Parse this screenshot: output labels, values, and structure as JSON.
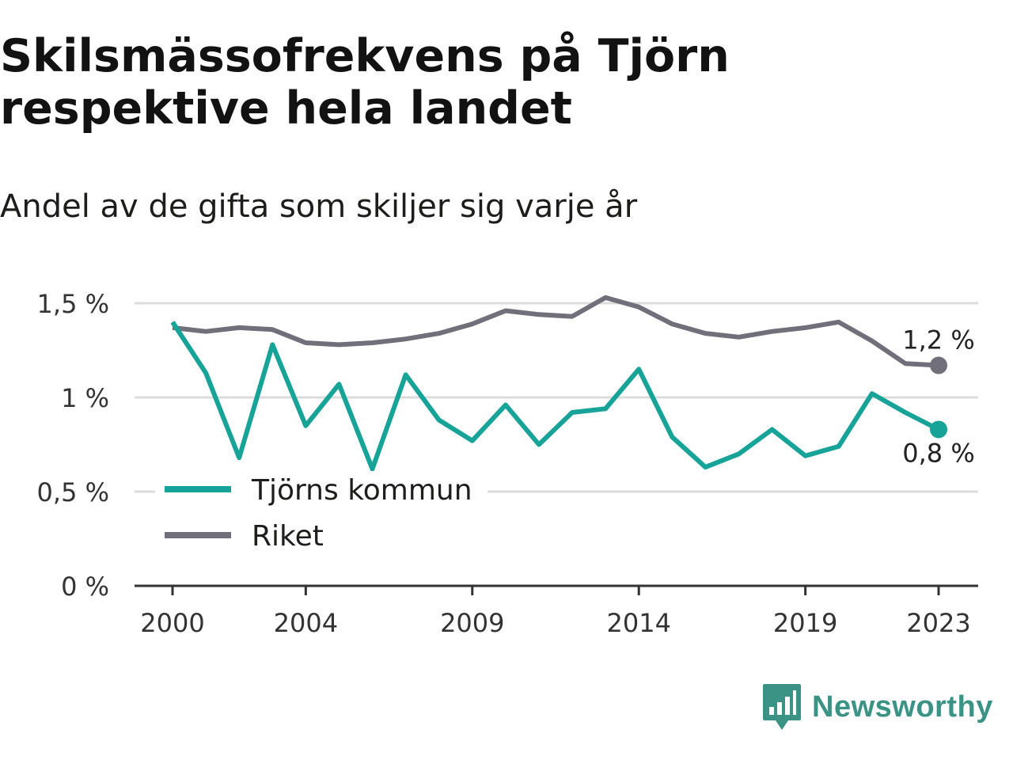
{
  "header": {
    "title": "Skilsmässofrekvens på Tjörn respektive hela landet",
    "subtitle": "Andel av de gifta som skiljer sig varje år"
  },
  "brand": {
    "name": "Newsworthy",
    "logo_icon": "newsworthy-logo-icon",
    "color": "#3a9384"
  },
  "chart_data": {
    "type": "line",
    "x": [
      2000,
      2001,
      2002,
      2003,
      2004,
      2005,
      2006,
      2007,
      2008,
      2009,
      2010,
      2011,
      2012,
      2013,
      2014,
      2015,
      2016,
      2017,
      2018,
      2019,
      2020,
      2021,
      2022,
      2023
    ],
    "x_ticks": [
      2000,
      2004,
      2009,
      2014,
      2019,
      2023
    ],
    "x_tick_labels": [
      "2000",
      "2004",
      "2009",
      "2014",
      "2019",
      "2023"
    ],
    "ylim": [
      0,
      1.5
    ],
    "y_ticks": [
      0,
      0.5,
      1,
      1.5
    ],
    "y_tick_labels": [
      "0 %",
      "0,5 %",
      "1 %",
      "1,5 %"
    ],
    "grid": true,
    "legend_position": "bottom-left",
    "series": [
      {
        "name": "Tjörns kommun",
        "color": "#17a398",
        "values": [
          1.4,
          1.13,
          0.68,
          1.28,
          0.85,
          1.07,
          0.62,
          1.12,
          0.88,
          0.77,
          0.96,
          0.75,
          0.92,
          0.94,
          1.15,
          0.79,
          0.63,
          0.7,
          0.83,
          0.69,
          0.74,
          1.02,
          0.92,
          0.83
        ],
        "end_label": "0,8 %"
      },
      {
        "name": "Riket",
        "color": "#71707a",
        "values": [
          1.37,
          1.35,
          1.37,
          1.36,
          1.29,
          1.28,
          1.29,
          1.31,
          1.34,
          1.39,
          1.46,
          1.44,
          1.43,
          1.53,
          1.48,
          1.39,
          1.34,
          1.32,
          1.35,
          1.37,
          1.4,
          1.3,
          1.18,
          1.17
        ],
        "end_label": "1,2 %"
      }
    ]
  }
}
